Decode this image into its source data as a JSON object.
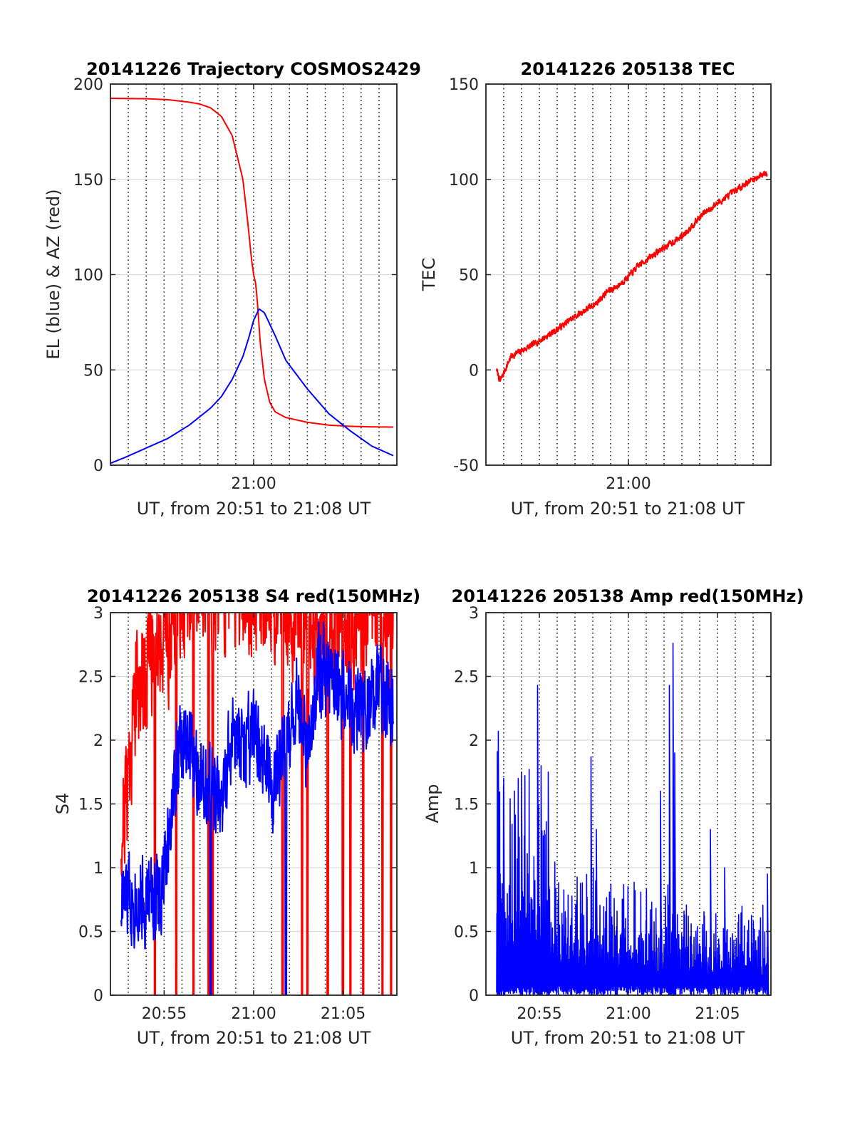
{
  "chart_data": [
    {
      "type": "line",
      "title": "20141226 Trajectory COSMOS2429",
      "xlabel": "UT, from 20:51 to 21:08 UT",
      "ylabel": "EL (blue) & AZ (red)",
      "xlim": [
        20.8667,
        21.1333
      ],
      "ylim": [
        0,
        200
      ],
      "yticks": [
        0,
        50,
        100,
        150,
        200
      ],
      "xticks": [
        {
          "value": 21.0,
          "label": "21:00"
        }
      ],
      "grid": true,
      "series": [
        {
          "name": "AZ",
          "color": "#ff0000",
          "kind": "curve",
          "x": [
            20.8667,
            20.9,
            20.92,
            20.94,
            20.95,
            20.96,
            20.97,
            20.98,
            20.99,
            20.995,
            20.998,
            21.0,
            21.002,
            21.004,
            21.006,
            21.01,
            21.015,
            21.02,
            21.03,
            21.05,
            21.07,
            21.09,
            21.11,
            21.13
          ],
          "values": [
            192.5,
            192.3,
            191.8,
            190.5,
            189.5,
            187.5,
            183,
            173,
            150,
            125,
            108,
            100,
            95,
            82,
            65,
            45,
            33,
            28,
            25,
            22.5,
            21,
            20.4,
            20.1,
            20
          ]
        },
        {
          "name": "EL",
          "color": "#0000ff",
          "kind": "curve",
          "x": [
            20.8667,
            20.88,
            20.9,
            20.92,
            20.94,
            20.96,
            20.97,
            20.98,
            20.99,
            20.995,
            21.0,
            21.005,
            21.01,
            21.02,
            21.03,
            21.05,
            21.07,
            21.09,
            21.11,
            21.13
          ],
          "values": [
            1,
            4,
            9,
            14,
            21,
            30,
            36,
            45,
            57,
            66,
            76,
            82,
            80,
            68,
            55,
            40,
            27,
            18,
            10,
            5
          ]
        }
      ]
    },
    {
      "type": "line",
      "title": "20141226 205138 TEC",
      "xlabel": "UT, from 20:51 to 21:08 UT",
      "ylabel": "TEC",
      "xlim": [
        20.8667,
        21.1333
      ],
      "ylim": [
        -50,
        150
      ],
      "yticks": [
        -50,
        0,
        50,
        100,
        150
      ],
      "xticks": [
        {
          "value": 21.0,
          "label": "21:00"
        }
      ],
      "grid": true,
      "series": [
        {
          "name": "TEC",
          "color": "#ff0000",
          "kind": "noisy",
          "amp": 1.5,
          "seed": 7,
          "x": [
            20.8767,
            20.88,
            20.89,
            20.91,
            20.93,
            20.95,
            20.97,
            20.98,
            20.99,
            21.0,
            21.01,
            21.03,
            21.05,
            21.07,
            21.09,
            21.11,
            21.13
          ],
          "values": [
            0,
            -6,
            7,
            13,
            20,
            28,
            35,
            41,
            44,
            49,
            55,
            63,
            70,
            82,
            90,
            98,
            104
          ]
        }
      ]
    },
    {
      "type": "line",
      "title": "20141226 205138 S4 red(150MHz)",
      "xlabel": "UT, from 20:51 to 21:08 UT",
      "ylabel": "S4",
      "xlim": [
        20.8667,
        21.1333
      ],
      "ylim": [
        0,
        3
      ],
      "yticks": [
        0,
        0.5,
        1,
        1.5,
        2,
        2.5,
        3
      ],
      "xticks": [
        {
          "value": 20.9167,
          "label": "20:55"
        },
        {
          "value": 21.0,
          "label": "21:00"
        },
        {
          "value": 21.0833,
          "label": "21:05"
        }
      ],
      "grid": true,
      "series": [
        {
          "name": "S4",
          "color": "#ff0000",
          "kind": "noisy",
          "amp": 0.45,
          "seed": 21,
          "clip": true,
          "x": [
            20.8767,
            20.88,
            20.885,
            20.89,
            20.9,
            20.91,
            20.92,
            20.925,
            20.93,
            20.96,
            21.0,
            21.03,
            21.05,
            21.06,
            21.08,
            21.1,
            21.13
          ],
          "values": [
            1.3,
            1.5,
            1.9,
            2.4,
            2.6,
            2.8,
            2.9,
            2.8,
            3.2,
            3.2,
            3.2,
            3.1,
            2.8,
            2.7,
            2.9,
            3.0,
            3.1
          ],
          "dips": [
            20.908,
            20.928,
            20.944,
            20.958,
            20.962,
            21.027,
            21.045,
            21.05,
            21.069,
            21.083,
            21.09,
            21.102,
            21.12,
            21.128
          ]
        },
        {
          "name": "S4 blue",
          "color": "#0000ff",
          "kind": "noisy",
          "amp": 0.32,
          "seed": 33,
          "clip": true,
          "x": [
            20.8767,
            20.88,
            20.89,
            20.9,
            20.91,
            20.915,
            20.925,
            20.93,
            20.94,
            20.95,
            20.96,
            20.97,
            20.98,
            20.99,
            21.0,
            21.01,
            21.02,
            21.03,
            21.04,
            21.05,
            21.06,
            21.08,
            21.1,
            21.12,
            21.13
          ],
          "values": [
            0.75,
            0.72,
            0.8,
            0.75,
            0.78,
            0.8,
            1.6,
            1.9,
            2.0,
            1.8,
            1.6,
            1.5,
            2.0,
            1.9,
            2.0,
            1.8,
            1.7,
            1.9,
            2.4,
            1.8,
            2.6,
            2.4,
            2.2,
            2.4,
            2.3
          ],
          "dips": [
            20.96,
            21.03
          ]
        }
      ]
    },
    {
      "type": "line",
      "title": "20141226 205138 Amp red(150MHz)",
      "xlabel": "UT, from 20:51 to 21:08 UT",
      "ylabel": "Amp",
      "xlim": [
        20.8667,
        21.1333
      ],
      "ylim": [
        0,
        3
      ],
      "yticks": [
        0,
        0.5,
        1,
        1.5,
        2,
        2.5,
        3
      ],
      "xticks": [
        {
          "value": 20.9167,
          "label": "20:55"
        },
        {
          "value": 21.0,
          "label": "21:00"
        },
        {
          "value": 21.0833,
          "label": "21:05"
        }
      ],
      "grid": true,
      "series": [
        {
          "name": "Amp",
          "color": "#0000ff",
          "kind": "spiky",
          "seed": 55,
          "x": [
            20.8767,
            20.88,
            20.9,
            20.92,
            20.93,
            20.94,
            20.96,
            20.98,
            21.0,
            21.02,
            21.03,
            21.04,
            21.06,
            21.08,
            21.1,
            21.13
          ],
          "values": [
            1.4,
            1.25,
            1.15,
            1.1,
            0.8,
            0.75,
            0.7,
            0.65,
            0.62,
            0.58,
            0.56,
            0.55,
            0.5,
            0.48,
            0.45,
            0.45
          ],
          "peaks": [
            {
              "x": 20.8783,
              "y": 2.07
            },
            {
              "x": 20.8833,
              "y": 1.7
            },
            {
              "x": 20.9,
              "y": 1.75
            },
            {
              "x": 20.915,
              "y": 2.43
            },
            {
              "x": 20.9183,
              "y": 1.8
            },
            {
              "x": 20.925,
              "y": 1.75
            },
            {
              "x": 20.965,
              "y": 1.87
            },
            {
              "x": 20.97,
              "y": 1.3
            },
            {
              "x": 21.03,
              "y": 1.6
            },
            {
              "x": 21.0383,
              "y": 2.43
            },
            {
              "x": 21.0417,
              "y": 2.76
            },
            {
              "x": 21.0433,
              "y": 1.9
            },
            {
              "x": 21.0767,
              "y": 1.3
            },
            {
              "x": 21.09,
              "y": 1.0
            },
            {
              "x": 21.13,
              "y": 0.95
            }
          ]
        }
      ]
    }
  ]
}
